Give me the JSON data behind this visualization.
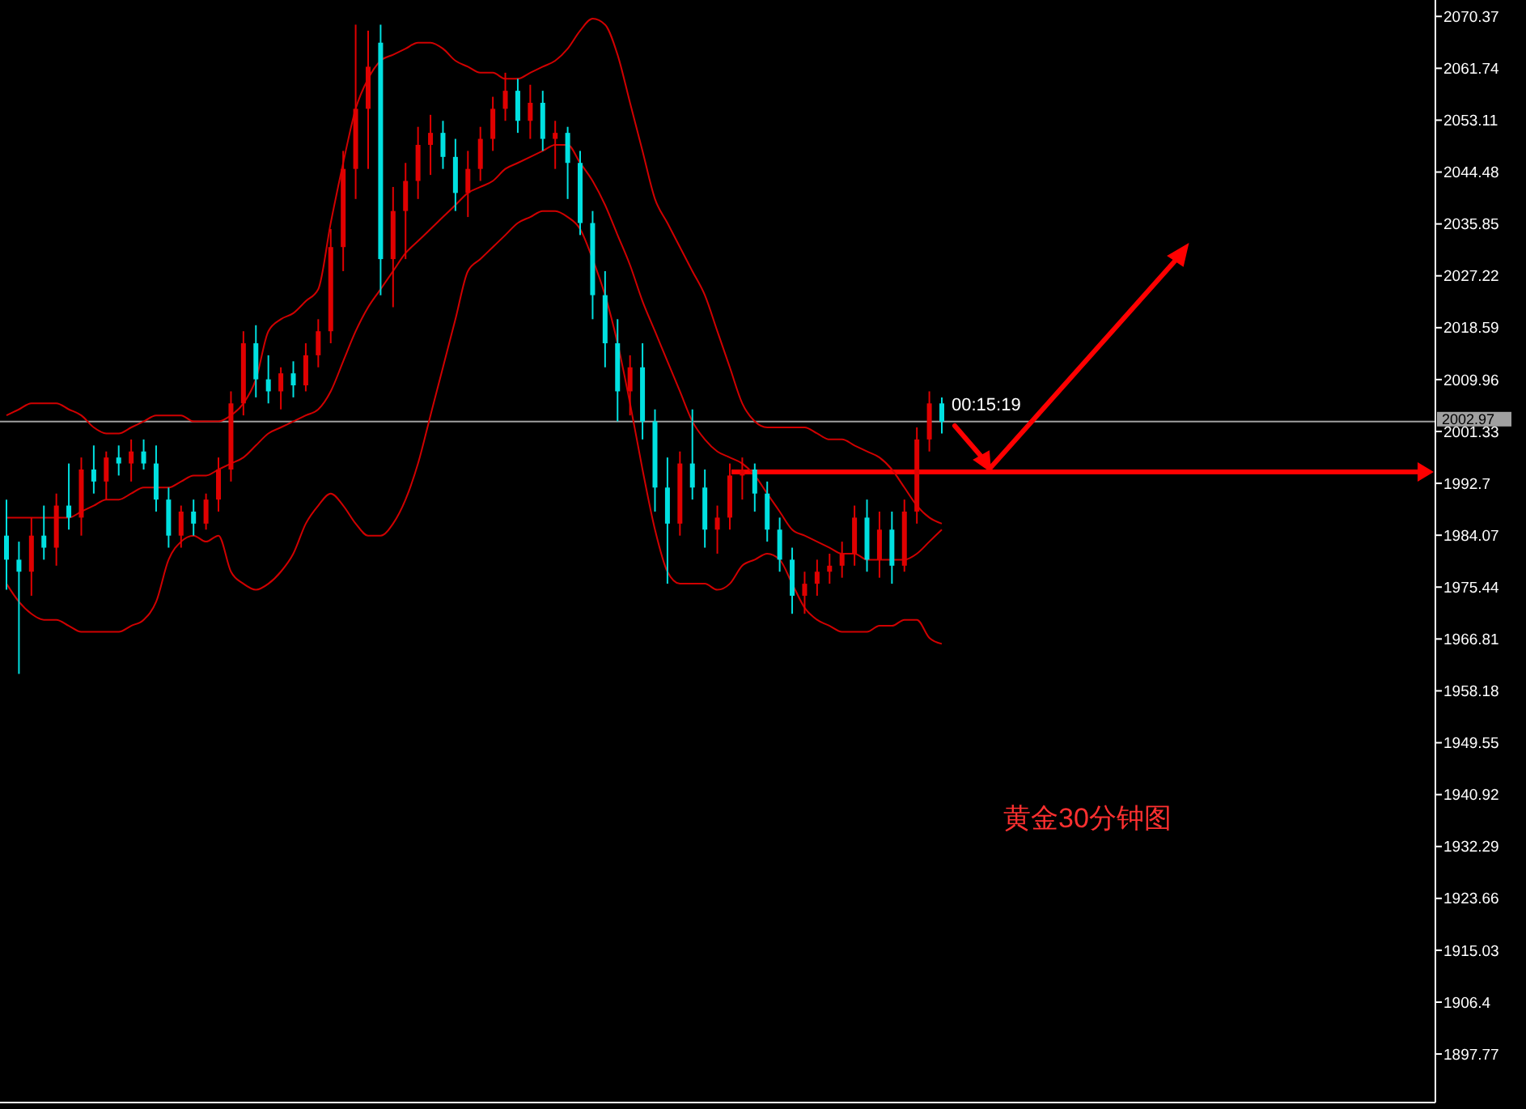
{
  "chart_data": {
    "type": "candlestick",
    "title": "黄金30分钟图",
    "annotations": [
      "00:15:19"
    ],
    "tick_labels": "y",
    "grid": false,
    "categories": [
      null,
      null,
      null,
      null,
      null,
      null,
      null,
      null,
      null,
      null,
      null,
      null,
      null,
      null,
      null,
      null,
      null,
      null,
      null,
      null,
      null,
      null,
      null,
      null,
      null,
      null,
      null,
      null,
      null,
      null,
      null,
      null,
      null,
      null,
      null,
      null,
      null,
      null,
      null,
      null,
      null,
      null,
      null,
      null,
      null,
      null,
      null,
      null,
      null,
      null,
      null,
      null,
      null,
      null,
      null,
      null,
      null,
      null,
      null,
      null,
      null,
      null,
      null,
      null,
      null,
      null,
      null,
      null,
      null,
      null,
      null,
      null,
      null,
      null,
      null,
      null
    ],
    "ohlc": [
      [
        1984,
        1990,
        1975,
        1980
      ],
      [
        1980,
        1983,
        1961,
        1978
      ],
      [
        1978,
        1987,
        1974,
        1984
      ],
      [
        1984,
        1989,
        1980,
        1982
      ],
      [
        1982,
        1991,
        1979,
        1989
      ],
      [
        1989,
        1996,
        1985,
        1987
      ],
      [
        1987,
        1997,
        1984,
        1995
      ],
      [
        1995,
        1999,
        1991,
        1993
      ],
      [
        1993,
        1998,
        1990,
        1997
      ],
      [
        1997,
        1999,
        1994,
        1996
      ],
      [
        1996,
        2000,
        1993,
        1998
      ],
      [
        1998,
        2000,
        1995,
        1996
      ],
      [
        1996,
        1999,
        1988,
        1990
      ],
      [
        1990,
        1992,
        1982,
        1984
      ],
      [
        1984,
        1989,
        1982,
        1988
      ],
      [
        1988,
        1990,
        1984,
        1986
      ],
      [
        1986,
        1991,
        1985,
        1990
      ],
      [
        1990,
        1997,
        1988,
        1995
      ],
      [
        1995,
        2008,
        1993,
        2006
      ],
      [
        2006,
        2018,
        2004,
        2016
      ],
      [
        2016,
        2019,
        2007,
        2010
      ],
      [
        2010,
        2014,
        2006,
        2008
      ],
      [
        2008,
        2012,
        2005,
        2011
      ],
      [
        2011,
        2013,
        2007,
        2009
      ],
      [
        2009,
        2016,
        2008,
        2014
      ],
      [
        2014,
        2020,
        2012,
        2018
      ],
      [
        2018,
        2035,
        2016,
        2032
      ],
      [
        2032,
        2048,
        2028,
        2045
      ],
      [
        2045,
        2069,
        2040,
        2055
      ],
      [
        2055,
        2068,
        2045,
        2062
      ],
      [
        2066,
        2069,
        2024,
        2030
      ],
      [
        2030,
        2042,
        2022,
        2038
      ],
      [
        2038,
        2046,
        2030,
        2043
      ],
      [
        2043,
        2052,
        2040,
        2049
      ],
      [
        2049,
        2054,
        2044,
        2051
      ],
      [
        2051,
        2053,
        2045,
        2047
      ],
      [
        2047,
        2050,
        2038,
        2041
      ],
      [
        2041,
        2048,
        2037,
        2045
      ],
      [
        2045,
        2052,
        2043,
        2050
      ],
      [
        2050,
        2057,
        2048,
        2055
      ],
      [
        2055,
        2061,
        2053,
        2058
      ],
      [
        2058,
        2060,
        2051,
        2053
      ],
      [
        2053,
        2059,
        2050,
        2056
      ],
      [
        2056,
        2058,
        2048,
        2050
      ],
      [
        2050,
        2053,
        2045,
        2051
      ],
      [
        2051,
        2052,
        2040,
        2046
      ],
      [
        2046,
        2048,
        2034,
        2036
      ],
      [
        2036,
        2038,
        2020,
        2024
      ],
      [
        2024,
        2028,
        2012,
        2016
      ],
      [
        2016,
        2020,
        2003,
        2008
      ],
      [
        2008,
        2014,
        2004,
        2012
      ],
      [
        2012,
        2016,
        2000,
        2003
      ],
      [
        2003,
        2005,
        1988,
        1992
      ],
      [
        1992,
        1997,
        1976,
        1986
      ],
      [
        1986,
        1998,
        1984,
        1996
      ],
      [
        1996,
        2005,
        1990,
        1992
      ],
      [
        1992,
        1995,
        1982,
        1985
      ],
      [
        1985,
        1989,
        1981,
        1987
      ],
      [
        1987,
        1996,
        1985,
        1994
      ],
      [
        1994,
        1997,
        1990,
        1995
      ],
      [
        1995,
        1996,
        1988,
        1991
      ],
      [
        1991,
        1993,
        1983,
        1985
      ],
      [
        1985,
        1987,
        1978,
        1980
      ],
      [
        1980,
        1982,
        1971,
        1974
      ],
      [
        1974,
        1978,
        1971,
        1976
      ],
      [
        1976,
        1980,
        1974,
        1978
      ],
      [
        1978,
        1981,
        1976,
        1979
      ],
      [
        1979,
        1983,
        1977,
        1981
      ],
      [
        1981,
        1989,
        1979,
        1987
      ],
      [
        1987,
        1990,
        1978,
        1980
      ],
      [
        1980,
        1988,
        1977,
        1985
      ],
      [
        1985,
        1988,
        1976,
        1979
      ],
      [
        1979,
        1990,
        1978,
        1988
      ],
      [
        1988,
        2002,
        1986,
        2000
      ],
      [
        2000,
        2008,
        1998,
        2006
      ],
      [
        2006,
        2007,
        2001,
        2002.97
      ]
    ],
    "colors": [
      "#00e0e0",
      "#00e0e0",
      "#e00000",
      "#00e0e0",
      "#e00000",
      "#00e0e0",
      "#e00000",
      "#00e0e0",
      "#e00000",
      "#00e0e0",
      "#e00000",
      "#00e0e0",
      "#00e0e0",
      "#00e0e0",
      "#e00000",
      "#00e0e0",
      "#e00000",
      "#e00000",
      "#e00000",
      "#e00000",
      "#00e0e0",
      "#00e0e0",
      "#e00000",
      "#00e0e0",
      "#e00000",
      "#e00000",
      "#e00000",
      "#e00000",
      "#e00000",
      "#e00000",
      "#00e0e0",
      "#e00000",
      "#e00000",
      "#e00000",
      "#e00000",
      "#00e0e0",
      "#00e0e0",
      "#e00000",
      "#e00000",
      "#e00000",
      "#e00000",
      "#00e0e0",
      "#e00000",
      "#00e0e0",
      "#e00000",
      "#00e0e0",
      "#00e0e0",
      "#00e0e0",
      "#00e0e0",
      "#00e0e0",
      "#e00000",
      "#00e0e0",
      "#00e0e0",
      "#00e0e0",
      "#e00000",
      "#00e0e0",
      "#00e0e0",
      "#e00000",
      "#e00000",
      "#e00000",
      "#00e0e0",
      "#00e0e0",
      "#00e0e0",
      "#00e0e0",
      "#e00000",
      "#e00000",
      "#e00000",
      "#e00000",
      "#e00000",
      "#00e0e0",
      "#e00000",
      "#00e0e0",
      "#e00000",
      "#e00000",
      "#e00000",
      "#00e0e0"
    ],
    "series": [
      {
        "type": "line",
        "color": "#d00000",
        "values": [
          2004,
          2005,
          2006,
          2006,
          2006,
          2005,
          2004,
          2002,
          2001,
          2001,
          2002,
          2003,
          2004,
          2004,
          2004,
          2003,
          2003,
          2003,
          2004,
          2006,
          2010,
          2018,
          2020,
          2021,
          2023,
          2025,
          2036,
          2046,
          2055,
          2060,
          2063,
          2064,
          2065,
          2066,
          2066,
          2065,
          2063,
          2062,
          2061,
          2061,
          2060,
          2060,
          2061,
          2062,
          2063,
          2065,
          2068,
          2070,
          2069,
          2064,
          2056,
          2048,
          2040,
          2036,
          2032,
          2028,
          2024,
          2018,
          2012,
          2006,
          2003,
          2002,
          2002,
          2002,
          2002,
          2001,
          2000,
          2000,
          1999,
          1998,
          1997,
          1995,
          1992,
          1989,
          1987,
          1986
        ]
      },
      {
        "type": "line",
        "color": "#d00000",
        "values": [
          1987,
          1987,
          1987,
          1987,
          1987,
          1987,
          1988,
          1989,
          1990,
          1990,
          1991,
          1992,
          1992,
          1992,
          1993,
          1994,
          1994,
          1995,
          1996,
          1997,
          1999,
          2001,
          2002,
          2003,
          2004,
          2005,
          2008,
          2013,
          2018,
          2022,
          2025,
          2028,
          2031,
          2033,
          2035,
          2037,
          2039,
          2041,
          2042,
          2043,
          2045,
          2046,
          2047,
          2048,
          2049,
          2049,
          2046,
          2043,
          2039,
          2034,
          2029,
          2023,
          2018,
          2013,
          2008,
          2003,
          2000,
          1998,
          1997,
          1996,
          1994,
          1991,
          1988,
          1985,
          1984,
          1983,
          1982,
          1981,
          1981,
          1980,
          1980,
          1980,
          1980,
          1981,
          1983,
          1985
        ]
      },
      {
        "type": "line",
        "color": "#d00000",
        "values": [
          1976,
          1973,
          1971,
          1970,
          1970,
          1969,
          1968,
          1968,
          1968,
          1968,
          1969,
          1970,
          1973,
          1980,
          1983,
          1984,
          1983,
          1984,
          1978,
          1976,
          1975,
          1976,
          1978,
          1981,
          1986,
          1989,
          1991,
          1989,
          1986,
          1984,
          1984,
          1986,
          1990,
          1996,
          2004,
          2012,
          2020,
          2028,
          2030,
          2032,
          2034,
          2036,
          2037,
          2038,
          2038,
          2037,
          2035,
          2030,
          2024,
          2016,
          2006,
          1995,
          1985,
          1978,
          1976,
          1976,
          1976,
          1975,
          1976,
          1979,
          1980,
          1981,
          1980,
          1976,
          1972,
          1970,
          1969,
          1968,
          1968,
          1968,
          1969,
          1969,
          1970,
          1970,
          1967,
          1966
        ]
      }
    ],
    "ref_lines": [
      {
        "axis": "y",
        "value": 2002.97,
        "label": "2002.97",
        "color": "#a0a0a0"
      },
      {
        "axis": "y",
        "value": 1994.6,
        "color": "#ff0000"
      }
    ],
    "ylim": [
      1889.7,
      2073.1
    ],
    "yticks": [
      2070.37,
      2061.74,
      2053.11,
      2044.48,
      2035.85,
      2027.22,
      2018.59,
      2009.96,
      2001.33,
      1992.7,
      1984.07,
      1975.44,
      1966.81,
      1958.18,
      1949.55,
      1940.92,
      1932.29,
      1923.66,
      1915.03,
      1906.4,
      1897.77
    ]
  }
}
